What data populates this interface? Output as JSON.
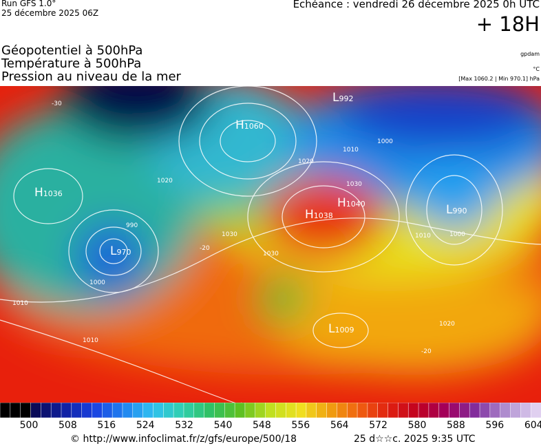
{
  "header": {
    "run": "Run GFS 1.0°",
    "run_date": "25 décembre 2025 06Z",
    "echeance": "Echéance : vendredi 26 décembre 2025 0h UTC",
    "lead": "+ 18H",
    "fields": [
      "Géopotentiel à 500hPa",
      "Température à 500hPa",
      "Pression au niveau de la mer"
    ],
    "units": [
      "gpdam",
      "°C",
      "[Max 1060.2 | Min 970.1] hPa"
    ]
  },
  "map": {
    "centers": [
      {
        "type": "H",
        "value": "1036"
      },
      {
        "type": "L",
        "value": "970"
      },
      {
        "type": "H",
        "value": "1060"
      },
      {
        "type": "L",
        "value": "992"
      },
      {
        "type": "H",
        "value": "1040"
      },
      {
        "type": "H",
        "value": "1038"
      },
      {
        "type": "L",
        "value": "990"
      },
      {
        "type": "L",
        "value": "1009"
      }
    ],
    "isobar_labels": [
      "1020",
      "1030",
      "1030",
      "1020",
      "1010",
      "1000",
      "1000",
      "1010",
      "1020",
      "1010",
      "1000",
      "990",
      "1010",
      "1030",
      "-30",
      "-20",
      "-20"
    ]
  },
  "colorbar": {
    "labels": [
      "500",
      "508",
      "516",
      "524",
      "532",
      "540",
      "548",
      "556",
      "564",
      "572",
      "580",
      "588",
      "596",
      "604"
    ]
  },
  "footer": {
    "url": "© http://www.infoclimat.fr/z/gfs/europe/500/18",
    "timestamp": "25 d☆☆c. 2025  9:35 UTC"
  }
}
